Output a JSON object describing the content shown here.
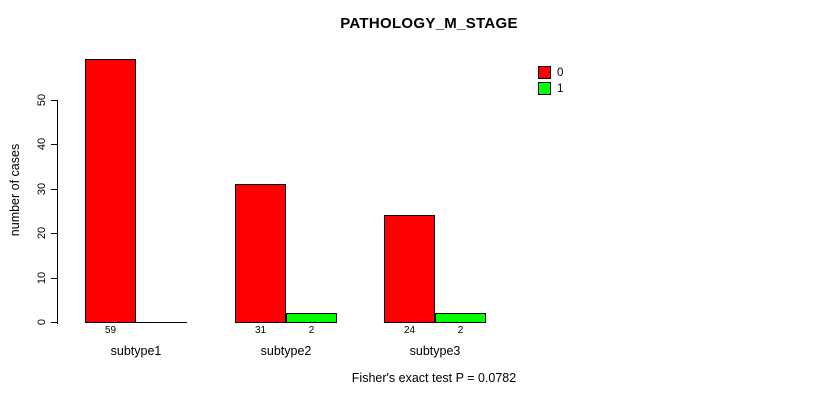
{
  "title": "PATHOLOGY_M_STAGE",
  "chart_data": {
    "type": "bar",
    "title": "PATHOLOGY_M_STAGE",
    "categories": [
      "subtype1",
      "subtype2",
      "subtype3"
    ],
    "series": [
      {
        "name": "0",
        "color": "#ff0000",
        "values": [
          59,
          31,
          24
        ]
      },
      {
        "name": "1",
        "color": "#00ff00",
        "values": [
          0,
          2,
          2
        ]
      }
    ],
    "xlabel": "",
    "ylabel": "number of cases",
    "ylim": [
      0,
      50
    ],
    "yticks": [
      0,
      10,
      20,
      30,
      40,
      50
    ],
    "grid": false,
    "legend_position": "top-right",
    "bar_value_labels": [
      [
        "59",
        "",
        ""
      ],
      [
        "31",
        "2",
        ""
      ],
      [
        "24",
        "2",
        ""
      ]
    ]
  },
  "footer": {
    "caption": "Fisher's exact test P = 0.0782"
  },
  "colors": {
    "background": "#ffffff",
    "axis": "#000000",
    "text": "#000000",
    "series_0": "#ff0000",
    "series_1": "#00ff00"
  }
}
